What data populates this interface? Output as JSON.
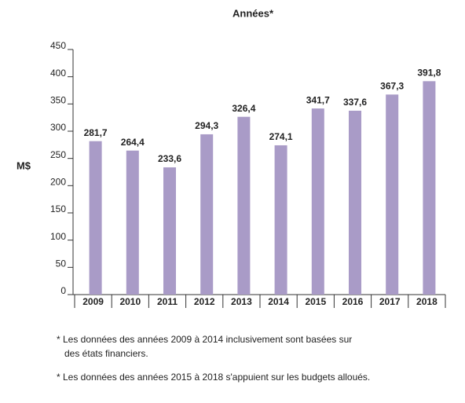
{
  "chart_data": {
    "type": "bar",
    "title": "Années*",
    "y_label": "M$",
    "categories": [
      "2009",
      "2010",
      "2011",
      "2012",
      "2013",
      "2014",
      "2015",
      "2016",
      "2017",
      "2018"
    ],
    "values": [
      281.7,
      264.4,
      233.6,
      294.3,
      326.4,
      274.1,
      341.7,
      337.6,
      367.3,
      391.8
    ],
    "value_labels": [
      "281,7",
      "264,4",
      "233,6",
      "294,3",
      "326,4",
      "274,1",
      "341,7",
      "337,6",
      "367,3",
      "391,8"
    ],
    "color": "#a99bc7",
    "ylim": [
      0,
      450
    ],
    "yticks": [
      0,
      50,
      100,
      150,
      200,
      250,
      300,
      350,
      400,
      450
    ],
    "grid": false,
    "footnotes": [
      [
        "* Les données des années 2009 à 2014 inclusivement sont basées sur",
        "des états financiers."
      ],
      [
        "* Les données des années 2015 à 2018 s'appuient sur les budgets alloués."
      ]
    ]
  }
}
